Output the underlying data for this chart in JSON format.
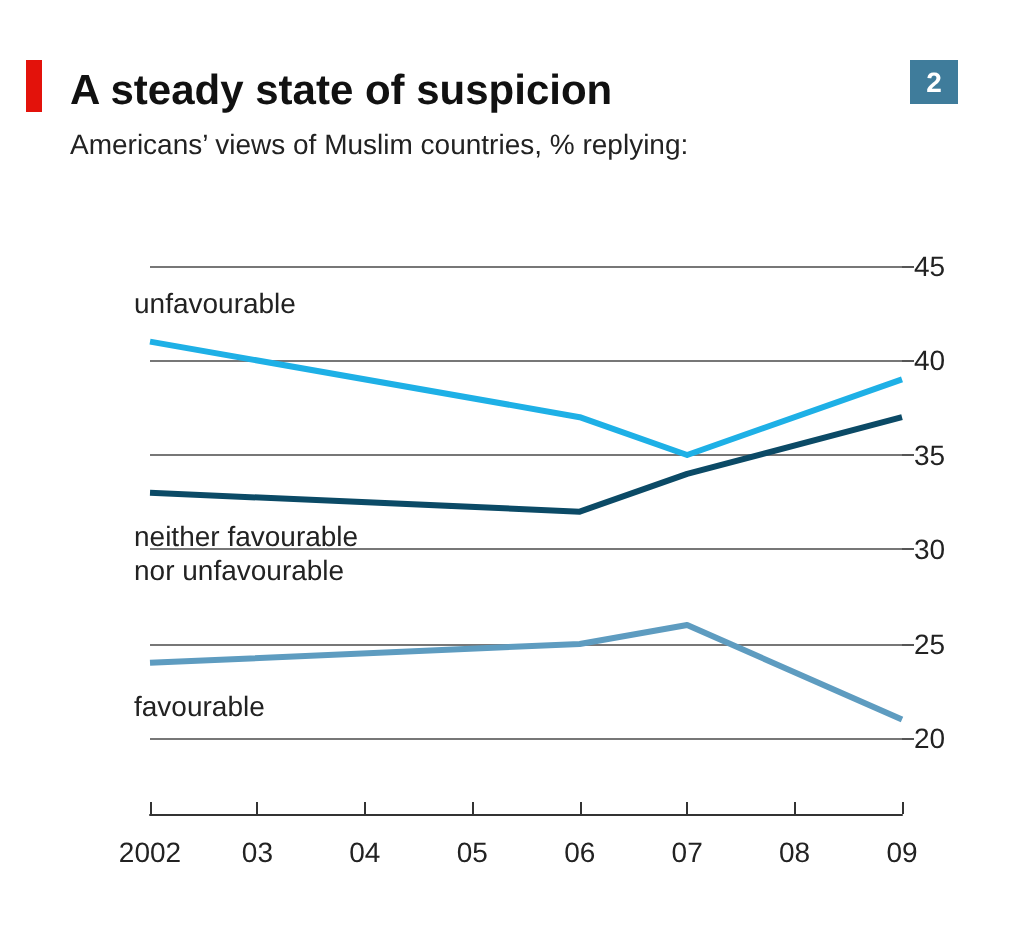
{
  "chart_data": {
    "type": "line",
    "title": "A steady state of suspicion",
    "subtitle": "Americans’ views of Muslim countries, % replying:",
    "annotations": [
      "2"
    ],
    "categories": [
      "2002",
      "03",
      "04",
      "05",
      "06",
      "07",
      "08",
      "09"
    ],
    "series": [
      {
        "name": "unfavourable",
        "color": "#1eb0e6",
        "values": [
          41,
          null,
          null,
          null,
          37,
          35,
          null,
          39
        ]
      },
      {
        "name": "neither favourable\nnor unfavourable",
        "color": "#0b4a66",
        "values": [
          33,
          null,
          null,
          null,
          32,
          34,
          null,
          37
        ]
      },
      {
        "name": "favourable",
        "color": "#5e9cc0",
        "values": [
          24,
          null,
          null,
          null,
          25,
          26,
          null,
          21
        ]
      }
    ],
    "ylim": [
      16,
      45
    ],
    "yticks": [
      20,
      25,
      30,
      35,
      40,
      45
    ],
    "grid": "y",
    "legend": false,
    "marker": "none",
    "line_style": "solid"
  }
}
